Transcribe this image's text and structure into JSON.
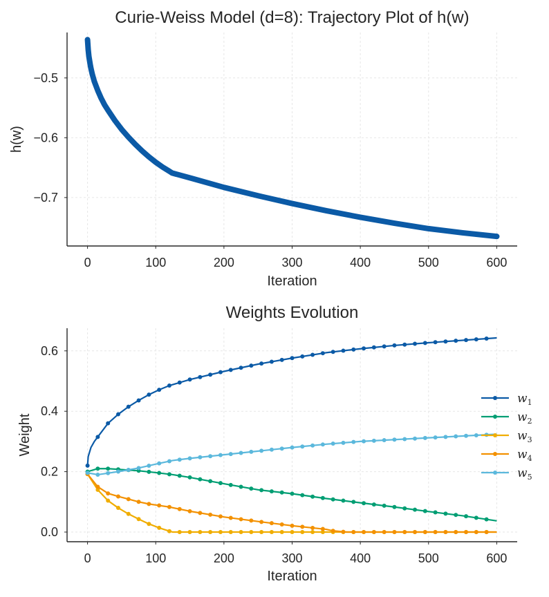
{
  "chart_data": [
    {
      "type": "line",
      "title": "Curie-Weiss Model (d=8): Trajectory Plot of h(w)",
      "xlabel": "Iteration",
      "ylabel": "h(w)",
      "xlim": [
        -30,
        630
      ],
      "ylim": [
        -0.781,
        -0.424
      ],
      "xticks": [
        0,
        100,
        200,
        300,
        400,
        500,
        600
      ],
      "xtick_labels": [
        "0",
        "100",
        "200",
        "300",
        "400",
        "500",
        "600"
      ],
      "yticks": [
        -0.5,
        -0.6,
        -0.7
      ],
      "ytick_labels": [
        "−0.5",
        "−0.6",
        "−0.7"
      ],
      "grid": true,
      "color": "#0b5aa6",
      "series": [
        {
          "name": "h(w)",
          "x": [
            0,
            1,
            2,
            3,
            4,
            5,
            7,
            10,
            15,
            20,
            25,
            30,
            40,
            50,
            60,
            70,
            80,
            90,
            100,
            110,
            120,
            124,
            150,
            200,
            250,
            300,
            350,
            400,
            450,
            500,
            550,
            600
          ],
          "y": [
            -0.436,
            -0.453,
            -0.464,
            -0.471,
            -0.478,
            -0.484,
            -0.494,
            -0.506,
            -0.521,
            -0.534,
            -0.545,
            -0.554,
            -0.571,
            -0.586,
            -0.599,
            -0.611,
            -0.622,
            -0.632,
            -0.641,
            -0.649,
            -0.656,
            -0.659,
            -0.667,
            -0.683,
            -0.697,
            -0.71,
            -0.722,
            -0.733,
            -0.743,
            -0.752,
            -0.759,
            -0.765
          ]
        }
      ]
    },
    {
      "type": "line",
      "title": "Weights Evolution",
      "xlabel": "Iteration",
      "ylabel": "Weight",
      "xlim": [
        -30,
        630
      ],
      "ylim": [
        -0.032,
        0.675
      ],
      "xticks": [
        0,
        100,
        200,
        300,
        400,
        500,
        600
      ],
      "xtick_labels": [
        "0",
        "100",
        "200",
        "300",
        "400",
        "500",
        "600"
      ],
      "yticks": [
        0.0,
        0.2,
        0.4,
        0.6
      ],
      "ytick_labels": [
        "0.0",
        "0.2",
        "0.4",
        "0.6"
      ],
      "grid": true,
      "legend": "right",
      "marker_x": [
        0,
        15,
        30,
        45,
        60,
        75,
        90,
        105,
        120,
        135,
        150,
        165,
        180,
        195,
        210,
        225,
        240,
        255,
        270,
        285,
        300,
        315,
        330,
        345,
        360,
        375,
        390,
        405,
        420,
        435,
        450,
        465,
        480,
        495,
        510,
        525,
        540,
        555,
        570,
        585
      ],
      "series": [
        {
          "name": "w",
          "subscript": "1",
          "color": "#0b5aa6",
          "x": [
            0,
            1,
            5,
            10,
            15,
            30,
            45,
            60,
            75,
            90,
            105,
            120,
            150,
            200,
            250,
            300,
            350,
            400,
            450,
            500,
            550,
            600
          ],
          "y": [
            0.22,
            0.25,
            0.28,
            0.3,
            0.315,
            0.36,
            0.39,
            0.415,
            0.436,
            0.455,
            0.471,
            0.485,
            0.505,
            0.532,
            0.556,
            0.576,
            0.594,
            0.607,
            0.618,
            0.627,
            0.635,
            0.643
          ]
        },
        {
          "name": "w",
          "subscript": "2",
          "color": "#009e73",
          "x": [
            0,
            15,
            30,
            50,
            75,
            100,
            125,
            150,
            200,
            250,
            300,
            350,
            400,
            450,
            500,
            550,
            600
          ],
          "y": [
            0.2,
            0.21,
            0.21,
            0.207,
            0.203,
            0.197,
            0.19,
            0.181,
            0.16,
            0.14,
            0.127,
            0.111,
            0.097,
            0.083,
            0.068,
            0.054,
            0.037
          ]
        },
        {
          "name": "w",
          "subscript": "3",
          "color": "#f0ad00",
          "x": [
            0,
            15,
            30,
            45,
            60,
            75,
            90,
            105,
            120,
            125,
            150,
            200,
            300,
            400,
            500,
            600
          ],
          "y": [
            0.192,
            0.14,
            0.104,
            0.08,
            0.06,
            0.043,
            0.027,
            0.014,
            0.003,
            0.0,
            0.0,
            0.0,
            0.0,
            0.0,
            0.0,
            0.0
          ]
        },
        {
          "name": "w",
          "subscript": "4",
          "color": "#f39100",
          "x": [
            0,
            15,
            30,
            45,
            60,
            75,
            90,
            105,
            120,
            150,
            200,
            250,
            300,
            325,
            350,
            360,
            380,
            400,
            500,
            600
          ],
          "y": [
            0.192,
            0.15,
            0.128,
            0.118,
            0.109,
            0.1,
            0.093,
            0.088,
            0.083,
            0.069,
            0.05,
            0.035,
            0.021,
            0.015,
            0.009,
            0.004,
            0.0,
            0.0,
            0.0,
            0.0
          ]
        },
        {
          "name": "w",
          "subscript": "5",
          "color": "#5bb8dc",
          "x": [
            0,
            15,
            30,
            50,
            75,
            100,
            125,
            150,
            200,
            250,
            300,
            350,
            400,
            450,
            500,
            550,
            600
          ],
          "y": [
            0.196,
            0.19,
            0.195,
            0.202,
            0.212,
            0.225,
            0.237,
            0.244,
            0.256,
            0.268,
            0.28,
            0.291,
            0.3,
            0.306,
            0.312,
            0.318,
            0.324
          ]
        }
      ]
    }
  ]
}
